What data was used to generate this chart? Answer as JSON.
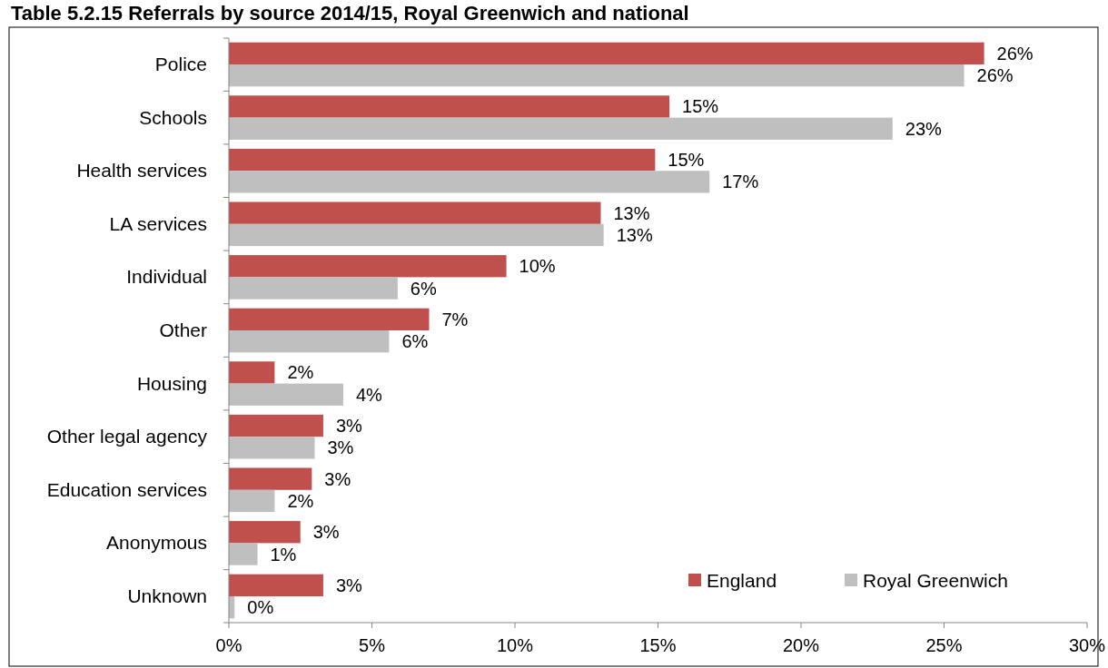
{
  "chart_data": {
    "type": "bar",
    "orientation": "horizontal",
    "title": "Table 5.2.15 Referrals by source 2014/15, Royal Greenwich and national",
    "categories": [
      "Police",
      "Schools",
      "Health services",
      "LA services",
      "Individual",
      "Other",
      "Housing",
      "Other legal agency",
      "Education services",
      "Anonymous",
      "Unknown"
    ],
    "series": [
      {
        "name": "England",
        "color": "#c0504d",
        "values": [
          26.4,
          15.4,
          14.9,
          13.0,
          9.7,
          7.0,
          1.6,
          3.3,
          2.9,
          2.5,
          3.3
        ],
        "value_labels": [
          "26%",
          "15%",
          "15%",
          "13%",
          "10%",
          "7%",
          "2%",
          "3%",
          "3%",
          "3%",
          "3%"
        ]
      },
      {
        "name": "Royal Greenwich",
        "color": "#bfbfbf",
        "values": [
          25.7,
          23.2,
          16.8,
          13.1,
          5.9,
          5.6,
          4.0,
          3.0,
          1.6,
          1.0,
          0.2
        ],
        "value_labels": [
          "26%",
          "23%",
          "17%",
          "13%",
          "6%",
          "6%",
          "4%",
          "3%",
          "2%",
          "1%",
          "0%"
        ]
      }
    ],
    "xlim": [
      0,
      30
    ],
    "xticks": [
      {
        "value": 0,
        "label": "0%"
      },
      {
        "value": 5,
        "label": "5%"
      },
      {
        "value": 10,
        "label": "10%"
      },
      {
        "value": 15,
        "label": "15%"
      },
      {
        "value": 20,
        "label": "20%"
      },
      {
        "value": 25,
        "label": "25%"
      },
      {
        "value": 30,
        "label": "30%"
      }
    ],
    "grid": false,
    "legend": "bottom right"
  }
}
